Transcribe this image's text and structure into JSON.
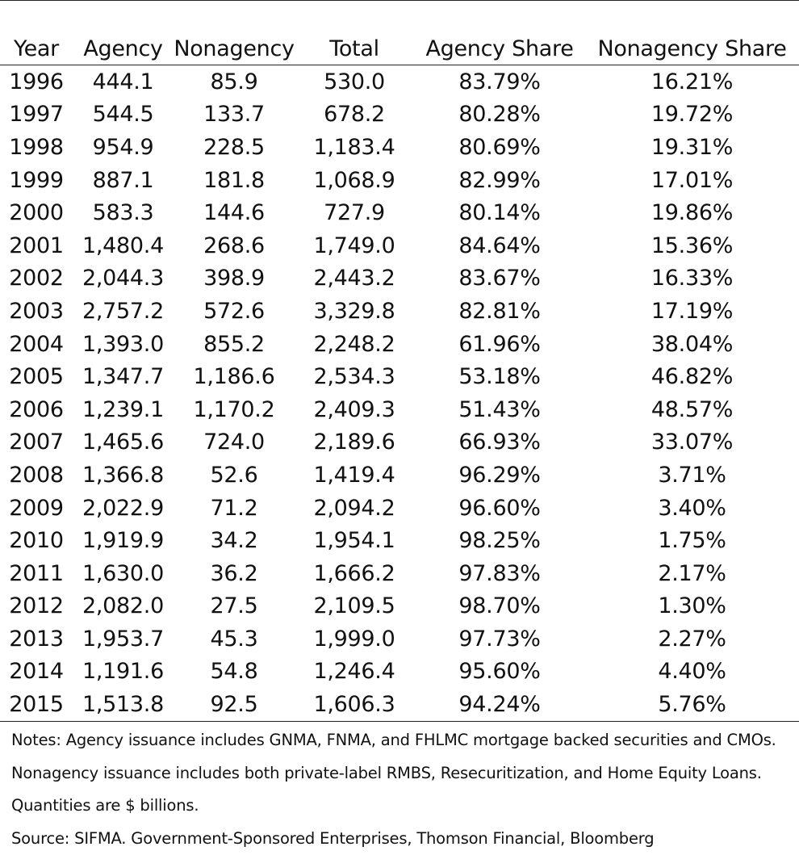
{
  "table": {
    "headers": [
      "Year",
      "Agency",
      "Nonagency",
      "Total",
      "Agency Share",
      "Nonagency Share"
    ],
    "rows": [
      [
        "1996",
        "444.1",
        "85.9",
        "530.0",
        "83.79%",
        "16.21%"
      ],
      [
        "1997",
        "544.5",
        "133.7",
        "678.2",
        "80.28%",
        "19.72%"
      ],
      [
        "1998",
        "954.9",
        "228.5",
        "1,183.4",
        "80.69%",
        "19.31%"
      ],
      [
        "1999",
        "887.1",
        "181.8",
        "1,068.9",
        "82.99%",
        "17.01%"
      ],
      [
        "2000",
        "583.3",
        "144.6",
        "727.9",
        "80.14%",
        "19.86%"
      ],
      [
        "2001",
        "1,480.4",
        "268.6",
        "1,749.0",
        "84.64%",
        "15.36%"
      ],
      [
        "2002",
        "2,044.3",
        "398.9",
        "2,443.2",
        "83.67%",
        "16.33%"
      ],
      [
        "2003",
        "2,757.2",
        "572.6",
        "3,329.8",
        "82.81%",
        "17.19%"
      ],
      [
        "2004",
        "1,393.0",
        "855.2",
        "2,248.2",
        "61.96%",
        "38.04%"
      ],
      [
        "2005",
        "1,347.7",
        "1,186.6",
        "2,534.3",
        "53.18%",
        "46.82%"
      ],
      [
        "2006",
        "1,239.1",
        "1,170.2",
        "2,409.3",
        "51.43%",
        "48.57%"
      ],
      [
        "2007",
        "1,465.6",
        "724.0",
        "2,189.6",
        "66.93%",
        "33.07%"
      ],
      [
        "2008",
        "1,366.8",
        "52.6",
        "1,419.4",
        "96.29%",
        "3.71%"
      ],
      [
        "2009",
        "2,022.9",
        "71.2",
        "2,094.2",
        "96.60%",
        "3.40%"
      ],
      [
        "2010",
        "1,919.9",
        "34.2",
        "1,954.1",
        "98.25%",
        "1.75%"
      ],
      [
        "2011",
        "1,630.0",
        "36.2",
        "1,666.2",
        "97.83%",
        "2.17%"
      ],
      [
        "2012",
        "2,082.0",
        "27.5",
        "2,109.5",
        "98.70%",
        "1.30%"
      ],
      [
        "2013",
        "1,953.7",
        "45.3",
        "1,999.0",
        "97.73%",
        "2.27%"
      ],
      [
        "2014",
        "1,191.6",
        "54.8",
        "1,246.4",
        "95.60%",
        "4.40%"
      ],
      [
        "2015",
        "1,513.8",
        "92.5",
        "1,606.3",
        "94.24%",
        "5.76%"
      ]
    ]
  },
  "notes": {
    "line1": "Notes: Agency issuance includes GNMA, FNMA, and FHLMC mortgage backed securities and CMOs.",
    "line2": "Nonagency issuance includes both private-label RMBS, Resecuritization, and Home Equity Loans.",
    "line3": "Quantities are $ billions.",
    "source": "Source: SIFMA. Government-Sponsored Enterprises, Thomson Financial, Bloomberg"
  }
}
